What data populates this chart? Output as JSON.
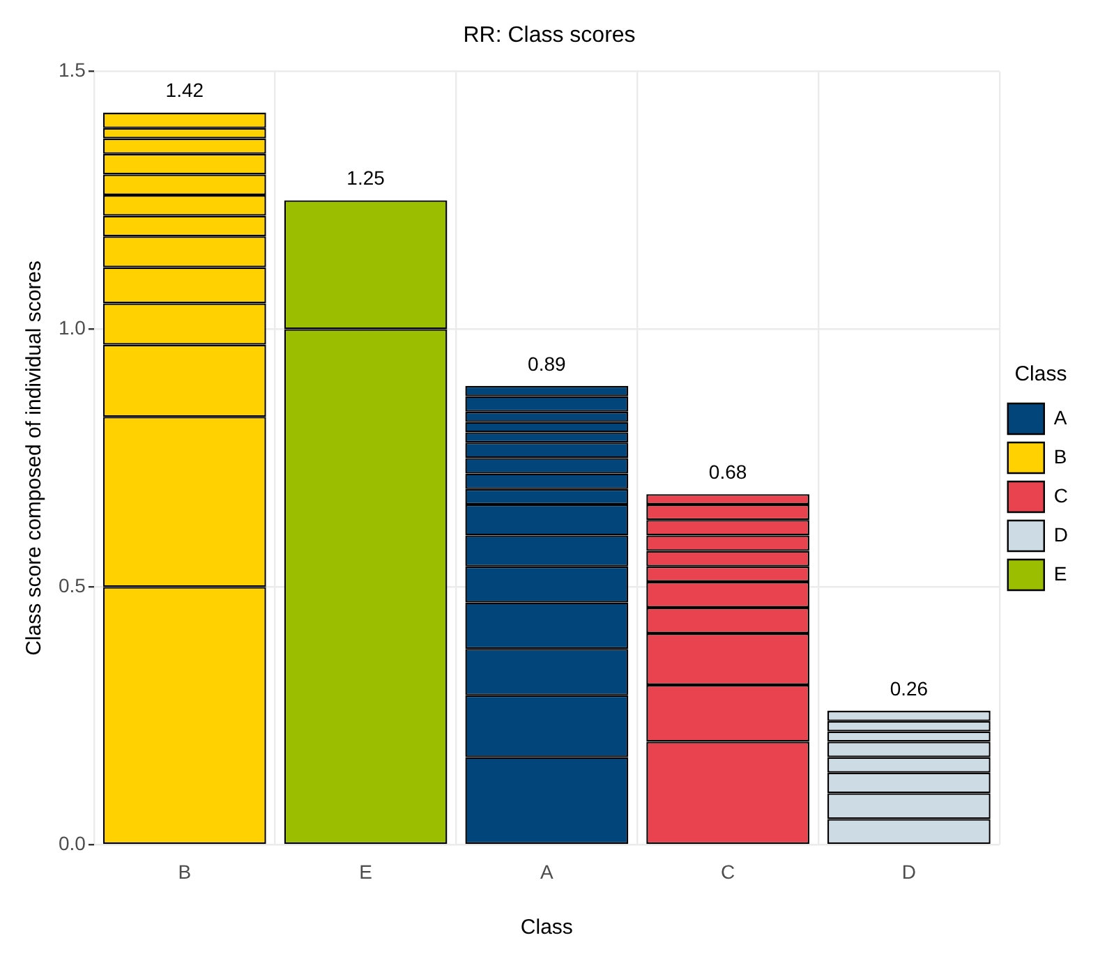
{
  "chart_data": {
    "type": "bar",
    "title": "RR: Class scores",
    "xlabel": "Class",
    "ylabel": "Class score composed of individual scores",
    "legend_title": "Class",
    "categories": [
      "B",
      "E",
      "A",
      "C",
      "D"
    ],
    "stacked": true,
    "ylim": [
      0,
      1.5
    ],
    "yticks": [
      {
        "value": 0,
        "label": "0.0"
      },
      {
        "value": 0.5,
        "label": "0.5"
      },
      {
        "value": 1,
        "label": "1.0"
      },
      {
        "value": 1.5,
        "label": "1.5"
      }
    ],
    "grid": true,
    "legend": "right",
    "totals": [
      "1.42",
      "1.25",
      "0.89",
      "0.68",
      "0.26"
    ],
    "series": [
      {
        "name": "A",
        "color": "#02457a",
        "values": [
          null,
          null,
          0.17,
          null,
          null
        ]
      },
      {
        "color": "#02457a",
        "values": [
          null,
          null,
          0.12,
          null,
          null
        ]
      },
      {
        "color": "#02457a",
        "values": [
          null,
          null,
          0.09,
          null,
          null
        ]
      },
      {
        "color": "#02457a",
        "values": [
          null,
          null,
          0.09,
          null,
          null
        ]
      },
      {
        "color": "#02457a",
        "values": [
          null,
          null,
          0.07,
          null,
          null
        ]
      },
      {
        "color": "#02457a",
        "values": [
          null,
          null,
          0.06,
          null,
          null
        ]
      },
      {
        "color": "#02457a",
        "values": [
          null,
          null,
          0.06,
          null,
          null
        ]
      },
      {
        "color": "#02457a",
        "values": [
          null,
          null,
          0.03,
          null,
          null
        ]
      },
      {
        "color": "#02457a",
        "values": [
          null,
          null,
          0.03,
          null,
          null
        ]
      },
      {
        "color": "#02457a",
        "values": [
          null,
          null,
          0.03,
          null,
          null
        ]
      },
      {
        "color": "#02457a",
        "values": [
          null,
          null,
          0.03,
          null,
          null
        ]
      },
      {
        "color": "#02457a",
        "values": [
          null,
          null,
          0.02,
          null,
          null
        ]
      },
      {
        "color": "#02457a",
        "values": [
          null,
          null,
          0.02,
          null,
          null
        ]
      },
      {
        "color": "#02457a",
        "values": [
          null,
          null,
          0.02,
          null,
          null
        ]
      },
      {
        "color": "#02457a",
        "values": [
          null,
          null,
          0.03,
          null,
          null
        ]
      },
      {
        "color": "#02457a",
        "values": [
          null,
          null,
          0.02,
          null,
          null
        ]
      },
      {
        "name": "B",
        "color": "#ffd100",
        "values": [
          0.5,
          null,
          null,
          null,
          null
        ]
      },
      {
        "color": "#ffd100",
        "values": [
          0.33,
          null,
          null,
          null,
          null
        ]
      },
      {
        "color": "#ffd100",
        "values": [
          0.14,
          null,
          null,
          null,
          null
        ]
      },
      {
        "color": "#ffd100",
        "values": [
          0.08,
          null,
          null,
          null,
          null
        ]
      },
      {
        "color": "#ffd100",
        "values": [
          0.07,
          null,
          null,
          null,
          null
        ]
      },
      {
        "color": "#ffd100",
        "values": [
          0.06,
          null,
          null,
          null,
          null
        ]
      },
      {
        "color": "#ffd100",
        "values": [
          0.04,
          null,
          null,
          null,
          null
        ]
      },
      {
        "color": "#ffd100",
        "values": [
          0.04,
          null,
          null,
          null,
          null
        ]
      },
      {
        "color": "#ffd100",
        "values": [
          0.04,
          null,
          null,
          null,
          null
        ]
      },
      {
        "color": "#ffd100",
        "values": [
          0.04,
          null,
          null,
          null,
          null
        ]
      },
      {
        "color": "#ffd100",
        "values": [
          0.03,
          null,
          null,
          null,
          null
        ]
      },
      {
        "color": "#ffd100",
        "values": [
          0.02,
          null,
          null,
          null,
          null
        ]
      },
      {
        "color": "#ffd100",
        "values": [
          0.03,
          null,
          null,
          null,
          null
        ]
      },
      {
        "name": "C",
        "color": "#e8434f",
        "values": [
          null,
          null,
          null,
          0.2,
          null
        ]
      },
      {
        "color": "#e8434f",
        "values": [
          null,
          null,
          null,
          0.11,
          null
        ]
      },
      {
        "color": "#e8434f",
        "values": [
          null,
          null,
          null,
          0.1,
          null
        ]
      },
      {
        "color": "#e8434f",
        "values": [
          null,
          null,
          null,
          0.05,
          null
        ]
      },
      {
        "color": "#e8434f",
        "values": [
          null,
          null,
          null,
          0.05,
          null
        ]
      },
      {
        "color": "#e8434f",
        "values": [
          null,
          null,
          null,
          0.03,
          null
        ]
      },
      {
        "color": "#e8434f",
        "values": [
          null,
          null,
          null,
          0.03,
          null
        ]
      },
      {
        "color": "#e8434f",
        "values": [
          null,
          null,
          null,
          0.03,
          null
        ]
      },
      {
        "color": "#e8434f",
        "values": [
          null,
          null,
          null,
          0.03,
          null
        ]
      },
      {
        "color": "#e8434f",
        "values": [
          null,
          null,
          null,
          0.03,
          null
        ]
      },
      {
        "color": "#e8434f",
        "values": [
          null,
          null,
          null,
          0.02,
          null
        ]
      },
      {
        "name": "D",
        "color": "#cddbe4",
        "values": [
          null,
          null,
          null,
          null,
          0.05
        ]
      },
      {
        "color": "#cddbe4",
        "values": [
          null,
          null,
          null,
          null,
          0.05
        ]
      },
      {
        "color": "#cddbe4",
        "values": [
          null,
          null,
          null,
          null,
          0.04
        ]
      },
      {
        "color": "#cddbe4",
        "values": [
          null,
          null,
          null,
          null,
          0.03
        ]
      },
      {
        "color": "#cddbe4",
        "values": [
          null,
          null,
          null,
          null,
          0.03
        ]
      },
      {
        "color": "#cddbe4",
        "values": [
          null,
          null,
          null,
          null,
          0.02
        ]
      },
      {
        "color": "#cddbe4",
        "values": [
          null,
          null,
          null,
          null,
          0.02
        ]
      },
      {
        "color": "#cddbe4",
        "values": [
          null,
          null,
          null,
          null,
          0.02
        ]
      },
      {
        "name": "E",
        "color": "#9bbe00",
        "values": [
          null,
          1.0,
          null,
          null,
          null
        ]
      },
      {
        "color": "#9bbe00",
        "values": [
          null,
          0.25,
          null,
          null,
          null
        ]
      }
    ]
  }
}
